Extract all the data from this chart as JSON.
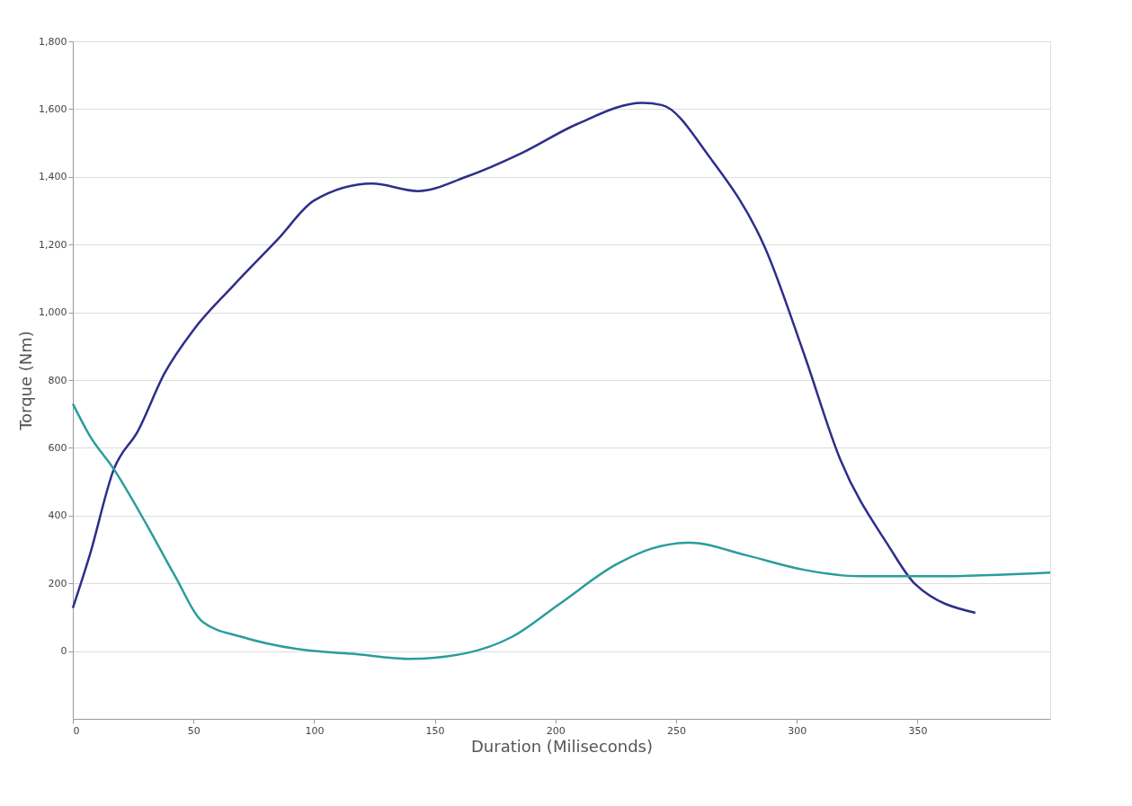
{
  "chart_data": {
    "type": "line",
    "xlabel": "Duration (Miliseconds)",
    "ylabel": "Torque (Nm)",
    "xlim": [
      0,
      405
    ],
    "xticks": [
      0,
      50,
      100,
      150,
      200,
      250,
      300,
      350
    ],
    "ylim": [
      -200,
      1800
    ],
    "yticks": [
      {
        "value": 0,
        "label": "0"
      },
      {
        "value": 200,
        "label": "200"
      },
      {
        "value": 400,
        "label": "400"
      },
      {
        "value": 600,
        "label": "600"
      },
      {
        "value": 800,
        "label": "800"
      },
      {
        "value": 1000,
        "label": "1,000"
      },
      {
        "value": 1200,
        "label": "1,200"
      },
      {
        "value": 1400,
        "label": "1,400"
      },
      {
        "value": 1600,
        "label": "1,600"
      },
      {
        "value": 1800,
        "label": "1,800"
      }
    ],
    "grid": "y",
    "marker": "none",
    "line_style": "solid",
    "series": [
      {
        "color": "#2e2e8a",
        "x": [
          0,
          7,
          17,
          27,
          38,
          50,
          66,
          85,
          100,
          124,
          143,
          163,
          186,
          209,
          236,
          244,
          264,
          287,
          303,
          318,
          338,
          349,
          374
        ],
        "values": [
          127,
          283,
          537,
          650,
          820,
          948,
          1075,
          1216,
          1330,
          1380,
          1358,
          1400,
          1470,
          1556,
          1618,
          1612,
          1457,
          1188,
          877,
          566,
          311,
          198,
          113
        ]
      },
      {
        "color": "#2a9d9d",
        "x": [
          0,
          7,
          17,
          31,
          42,
          54,
          70,
          93,
          116,
          140,
          163,
          182,
          202,
          225,
          240,
          256,
          279,
          303,
          326,
          357,
          405
        ],
        "values": [
          730,
          636,
          537,
          368,
          226,
          85,
          42,
          6,
          -8,
          -23,
          -6,
          42,
          141,
          255,
          303,
          320,
          283,
          240,
          221,
          221,
          232
        ]
      }
    ]
  }
}
